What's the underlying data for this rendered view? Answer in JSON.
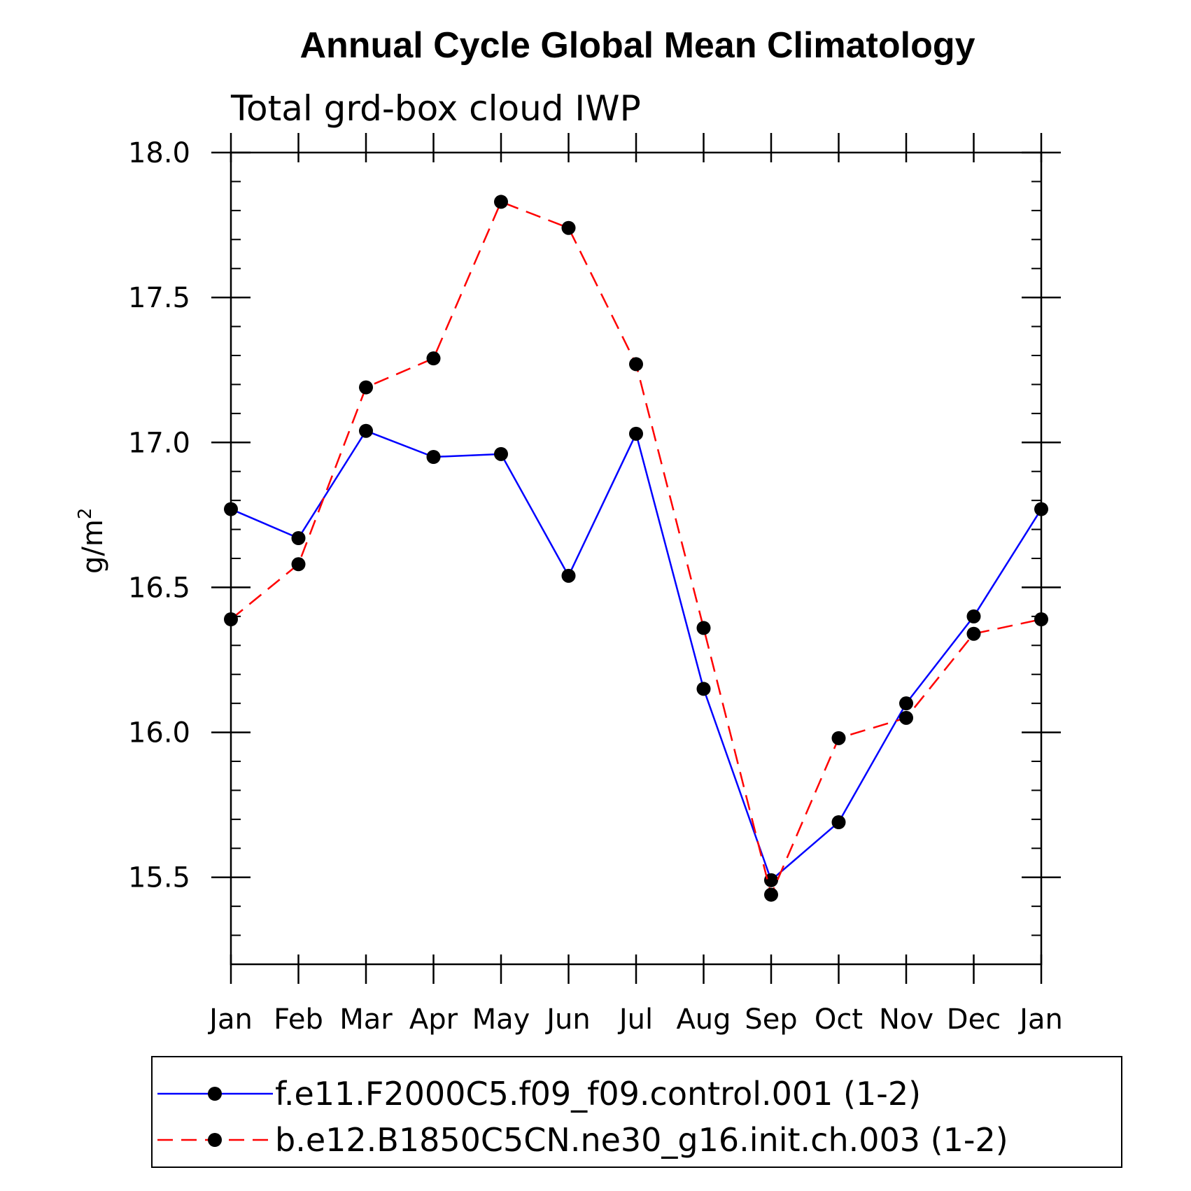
{
  "chart_data": {
    "type": "line",
    "title": "Annual Cycle Global Mean Climatology",
    "subtitle": "Total grd-box cloud IWP",
    "ylabel": "g/m",
    "ylabel_superscript": "2",
    "xlabel": "",
    "categories": [
      "Jan",
      "Feb",
      "Mar",
      "Apr",
      "May",
      "Jun",
      "Jul",
      "Aug",
      "Sep",
      "Oct",
      "Nov",
      "Dec",
      "Jan"
    ],
    "ylim": [
      15.2,
      18.0
    ],
    "yticks": [
      15.5,
      16.0,
      16.5,
      17.0,
      17.5,
      18.0
    ],
    "ytick_labels": [
      "15.5",
      "16.0",
      "16.5",
      "17.0",
      "17.5",
      "18.0"
    ],
    "yminor_step": 0.1,
    "series": [
      {
        "name": "f.e11.F2000C5.f09_f09.control.001 (1-2)",
        "color": "#0000ff",
        "dash": "solid",
        "values": [
          16.77,
          16.67,
          17.04,
          16.95,
          16.96,
          16.54,
          17.03,
          16.15,
          15.49,
          15.69,
          16.1,
          16.4,
          16.77
        ]
      },
      {
        "name": "b.e12.B1850C5CN.ne30_g16.init.ch.003 (1-2)",
        "color": "#ff0000",
        "dash": "dashed",
        "values": [
          16.39,
          16.58,
          17.19,
          17.29,
          17.83,
          17.74,
          17.27,
          16.36,
          15.44,
          15.98,
          16.05,
          16.34,
          16.39
        ]
      }
    ],
    "legend_position": "bottom"
  }
}
